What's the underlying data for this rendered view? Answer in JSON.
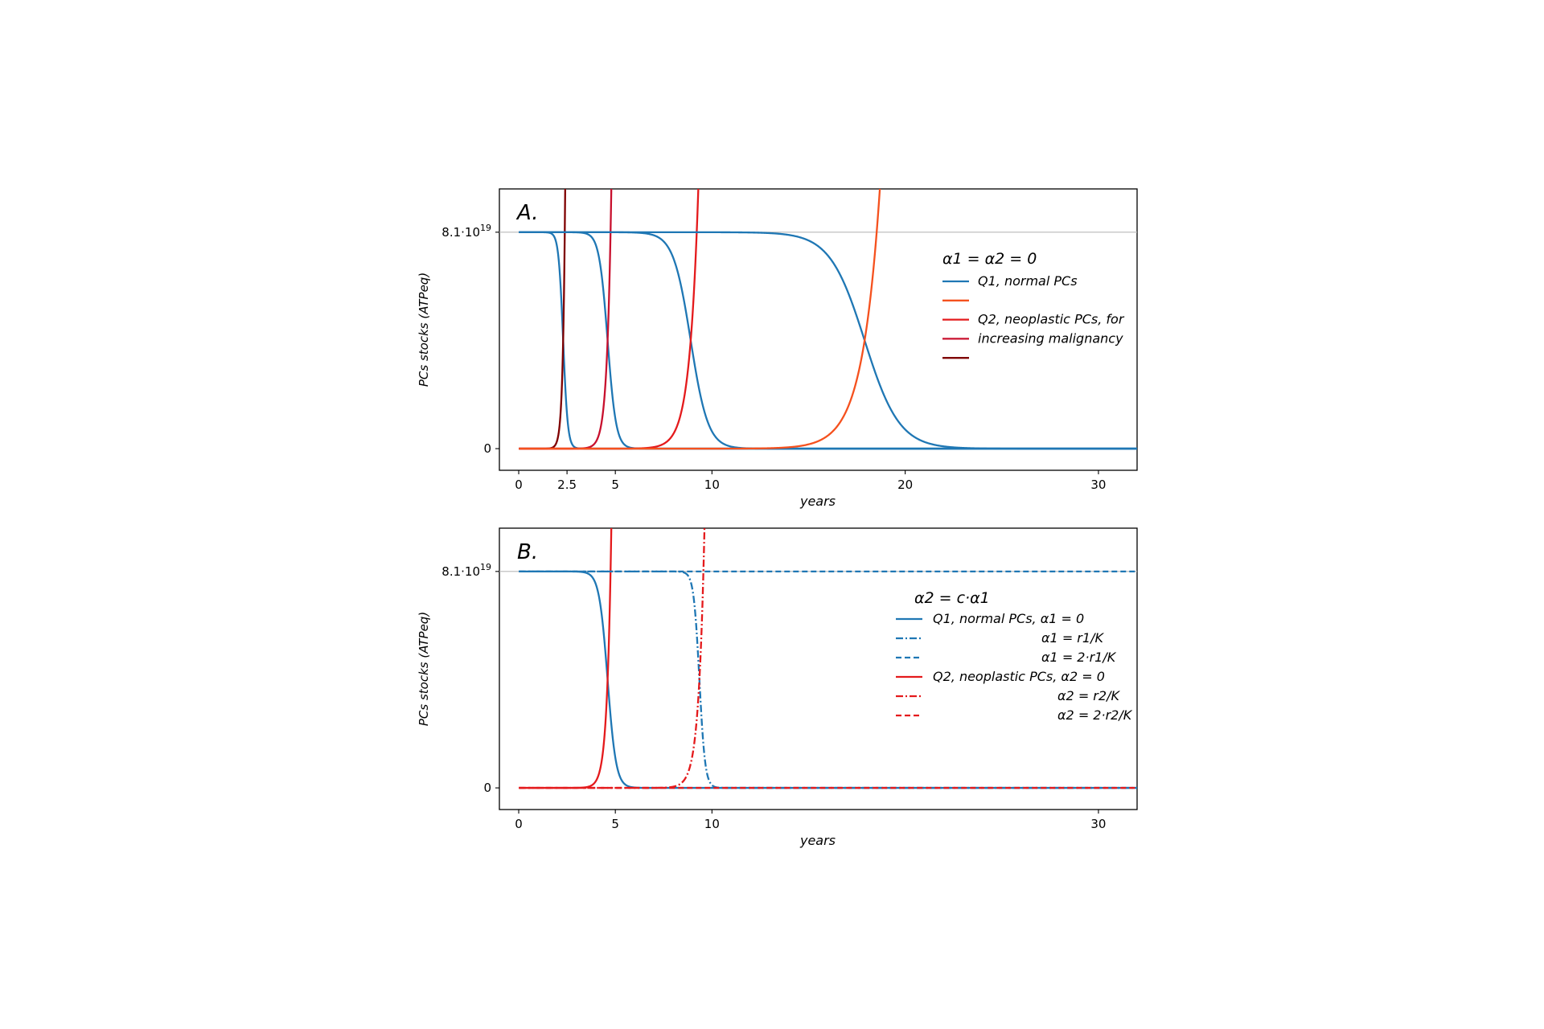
{
  "chart_data": [
    {
      "type": "line",
      "panel_label": "A.",
      "xlabel": "years",
      "ylabel": "PCs stocks (ATPeq)",
      "xlim": [
        -1,
        32
      ],
      "ylim": [
        -0.1,
        1.2
      ],
      "x_ticks": [
        {
          "value": 0,
          "label": "0"
        },
        {
          "value": 2.5,
          "label": "2.5"
        },
        {
          "value": 5,
          "label": "5"
        },
        {
          "value": 10,
          "label": "10"
        },
        {
          "value": 20,
          "label": "20"
        },
        {
          "value": 30,
          "label": "30"
        }
      ],
      "y_ticks": [
        {
          "value": 0,
          "label": "0"
        },
        {
          "value": 1,
          "label": "8.1·10",
          "sup": "19"
        }
      ],
      "reference_line_y": 1,
      "legend": {
        "title": "α1 = α2 = 0",
        "entries": [
          {
            "color": "#1f77b4",
            "text": "Q1, normal PCs"
          },
          {
            "color": "#f5511e",
            "text": ""
          },
          {
            "color": "#e41a1c",
            "text": "Q2, neoplastic PCs, for"
          },
          {
            "color": "#c8102e",
            "text": "increasing malignancy"
          },
          {
            "color": "#7f0000",
            "text": ""
          }
        ]
      },
      "series": [
        {
          "kind": "normal",
          "color": "#1f77b4",
          "dash": "solid",
          "midpoint": 2.3,
          "width": 0.12
        },
        {
          "kind": "neoplastic",
          "color": "#7f0000",
          "dash": "solid",
          "midpoint": 2.3,
          "width": 0.12
        },
        {
          "kind": "normal",
          "color": "#1f77b4",
          "dash": "solid",
          "midpoint": 4.6,
          "width": 0.22
        },
        {
          "kind": "neoplastic",
          "color": "#c8102e",
          "dash": "solid",
          "midpoint": 4.6,
          "width": 0.22
        },
        {
          "kind": "normal",
          "color": "#1f77b4",
          "dash": "solid",
          "midpoint": 8.9,
          "width": 0.45
        },
        {
          "kind": "neoplastic",
          "color": "#e41a1c",
          "dash": "solid",
          "midpoint": 8.9,
          "width": 0.45
        },
        {
          "kind": "normal",
          "color": "#1f77b4",
          "dash": "solid",
          "midpoint": 17.9,
          "width": 0.9
        },
        {
          "kind": "neoplastic",
          "color": "#f5511e",
          "dash": "solid",
          "midpoint": 17.9,
          "width": 0.9
        }
      ]
    },
    {
      "type": "line",
      "panel_label": "B.",
      "xlabel": "years",
      "ylabel": "PCs stocks (ATPeq)",
      "xlim": [
        -1,
        32
      ],
      "ylim": [
        -0.1,
        1.2
      ],
      "x_ticks": [
        {
          "value": 0,
          "label": "0"
        },
        {
          "value": 5,
          "label": "5"
        },
        {
          "value": 10,
          "label": "10"
        },
        {
          "value": 30,
          "label": "30"
        }
      ],
      "y_ticks": [
        {
          "value": 0,
          "label": "0"
        },
        {
          "value": 1,
          "label": "8.1·10",
          "sup": "19"
        }
      ],
      "reference_line_y": 1,
      "legend": {
        "title": "α2 = c·α1",
        "entries": [
          {
            "color": "#1f77b4",
            "dash": "solid",
            "text": "Q1, normal PCs, α1 = 0"
          },
          {
            "color": "#1f77b4",
            "dash": "dashdot",
            "text": "α1 = r1/K"
          },
          {
            "color": "#1f77b4",
            "dash": "dashed",
            "text": "α1 = 2·r1/K"
          },
          {
            "color": "#e41a1c",
            "dash": "solid",
            "text": "Q2, neoplastic PCs, α2 = 0"
          },
          {
            "color": "#e41a1c",
            "dash": "dashdot",
            "text": "α2 = r2/K"
          },
          {
            "color": "#e41a1c",
            "dash": "dashed",
            "text": "α2 = 2·r2/K"
          }
        ]
      },
      "series": [
        {
          "kind": "normal",
          "color": "#1f77b4",
          "dash": "solid",
          "midpoint": 4.6,
          "width": 0.22
        },
        {
          "kind": "neoplastic",
          "color": "#e41a1c",
          "dash": "solid",
          "midpoint": 4.6,
          "width": 0.22
        },
        {
          "kind": "normal",
          "color": "#1f77b4",
          "dash": "dashdot",
          "midpoint": 9.35,
          "width": 0.15
        },
        {
          "kind": "neoplastic",
          "color": "#e41a1c",
          "dash": "dashdot",
          "midpoint": 9.35,
          "width": 0.3
        },
        {
          "kind": "normal",
          "color": "#1f77b4",
          "dash": "dashed",
          "midpoint": null,
          "width": null
        },
        {
          "kind": "neoplastic",
          "color": "#e41a1c",
          "dash": "dashed",
          "midpoint": null,
          "width": null
        }
      ]
    }
  ]
}
